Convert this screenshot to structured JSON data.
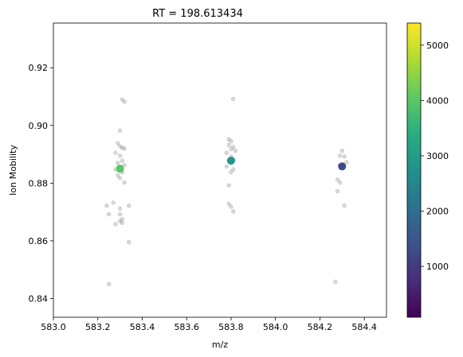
{
  "chart_data": {
    "type": "scatter",
    "title": "RT = 198.613434",
    "xlabel": "m/z",
    "ylabel": "Ion Mobility",
    "xlim": [
      583.0,
      584.5
    ],
    "ylim": [
      0.8335,
      0.9355
    ],
    "xticks": [
      583.0,
      583.2,
      583.4,
      583.6,
      583.8,
      584.0,
      584.2,
      584.4
    ],
    "xtick_labels": [
      "583.0",
      "583.2",
      "583.4",
      "583.6",
      "583.8",
      "584.0",
      "584.2",
      "584.4"
    ],
    "yticks": [
      0.84,
      0.86,
      0.88,
      0.9,
      0.92
    ],
    "ytick_labels": [
      "0.84",
      "0.86",
      "0.88",
      "0.90",
      "0.92"
    ],
    "grid": false,
    "colormap": "viridis",
    "colorbar": {
      "range": [
        80,
        5400
      ],
      "ticks": [
        1000,
        2000,
        3000,
        4000,
        5000
      ],
      "tick_labels": [
        "1000",
        "2000",
        "3000",
        "4000",
        "5000"
      ]
    },
    "background_points": {
      "color": "#808080",
      "points": [
        [
          583.31,
          0.909
        ],
        [
          583.32,
          0.9082
        ],
        [
          583.3,
          0.8982
        ],
        [
          583.29,
          0.8938
        ],
        [
          583.3,
          0.8928
        ],
        [
          583.31,
          0.8922
        ],
        [
          583.32,
          0.892
        ],
        [
          583.28,
          0.8905
        ],
        [
          583.3,
          0.8895
        ],
        [
          583.31,
          0.8878
        ],
        [
          583.29,
          0.887
        ],
        [
          583.32,
          0.8862
        ],
        [
          583.3,
          0.8855
        ],
        [
          583.28,
          0.8848
        ],
        [
          583.31,
          0.8838
        ],
        [
          583.29,
          0.8828
        ],
        [
          583.3,
          0.8818
        ],
        [
          583.32,
          0.8802
        ],
        [
          583.24,
          0.8722
        ],
        [
          583.27,
          0.8732
        ],
        [
          583.34,
          0.8722
        ],
        [
          583.3,
          0.8712
        ],
        [
          583.25,
          0.8692
        ],
        [
          583.3,
          0.8692
        ],
        [
          583.31,
          0.8675
        ],
        [
          583.3,
          0.8668
        ],
        [
          583.28,
          0.8658
        ],
        [
          583.31,
          0.8662
        ],
        [
          583.34,
          0.8595
        ],
        [
          583.25,
          0.845
        ],
        [
          583.81,
          0.9092
        ],
        [
          583.79,
          0.8952
        ],
        [
          583.8,
          0.8945
        ],
        [
          583.79,
          0.8932
        ],
        [
          583.81,
          0.8925
        ],
        [
          583.8,
          0.8918
        ],
        [
          583.78,
          0.8905
        ],
        [
          583.82,
          0.8912
        ],
        [
          583.8,
          0.8892
        ],
        [
          583.81,
          0.8882
        ],
        [
          583.79,
          0.8878
        ],
        [
          583.8,
          0.887
        ],
        [
          583.78,
          0.8858
        ],
        [
          583.81,
          0.8848
        ],
        [
          583.8,
          0.8838
        ],
        [
          583.79,
          0.8792
        ],
        [
          583.79,
          0.8728
        ],
        [
          583.8,
          0.8718
        ],
        [
          583.81,
          0.8702
        ],
        [
          584.3,
          0.8912
        ],
        [
          584.29,
          0.8895
        ],
        [
          584.31,
          0.8892
        ],
        [
          584.32,
          0.8872
        ],
        [
          584.29,
          0.8862
        ],
        [
          584.3,
          0.8852
        ],
        [
          584.28,
          0.8812
        ],
        [
          584.29,
          0.8802
        ],
        [
          584.28,
          0.8772
        ],
        [
          584.31,
          0.8722
        ],
        [
          584.27,
          0.8458
        ]
      ]
    },
    "highlight_points": [
      {
        "x": 583.3,
        "y": 0.885,
        "intensity": 4000
      },
      {
        "x": 583.8,
        "y": 0.8878,
        "intensity": 2900
      },
      {
        "x": 584.3,
        "y": 0.8858,
        "intensity": 1300
      }
    ]
  }
}
